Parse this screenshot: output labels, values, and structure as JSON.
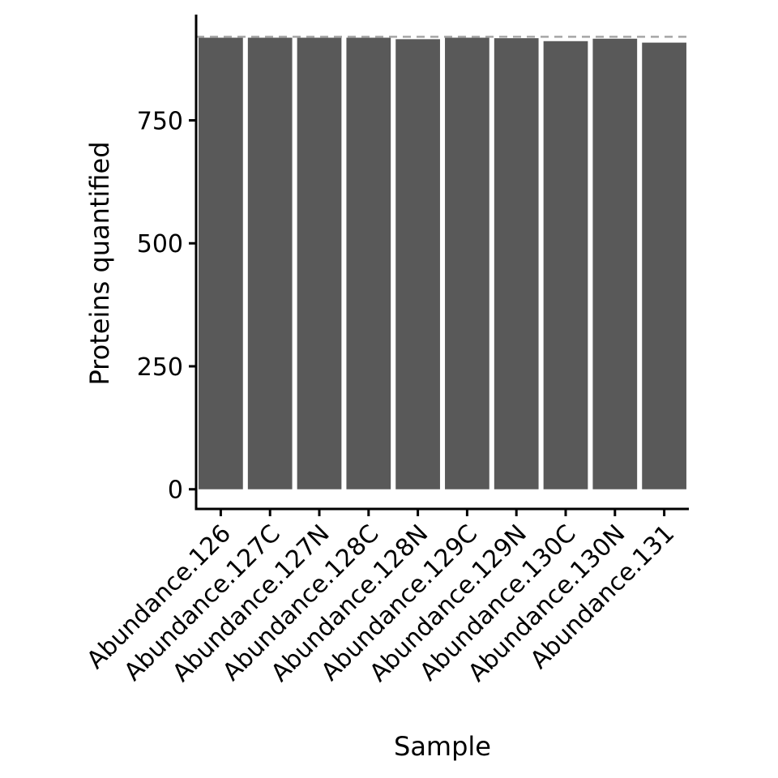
{
  "chart_data": {
    "type": "bar",
    "title": "",
    "xlabel": "Sample",
    "ylabel": "Proteins quantified",
    "categories": [
      "Abundance.126",
      "Abundance.127C",
      "Abundance.127N",
      "Abundance.128C",
      "Abundance.128N",
      "Abundance.129C",
      "Abundance.129N",
      "Abundance.130C",
      "Abundance.130N",
      "Abundance.131"
    ],
    "values": [
      918,
      918,
      918,
      918,
      915,
      918,
      917,
      911,
      916,
      908
    ],
    "reference_line": 920,
    "ylim": [
      -40,
      965
    ],
    "yticks": [
      0,
      250,
      500,
      750
    ],
    "ytick_labels": [
      "0",
      "250",
      "500",
      "750"
    ],
    "grid": false,
    "legend": "none",
    "colors": {
      "bar": "#595959",
      "reference_line": "#a6a6a6",
      "axis": "#000000"
    }
  }
}
